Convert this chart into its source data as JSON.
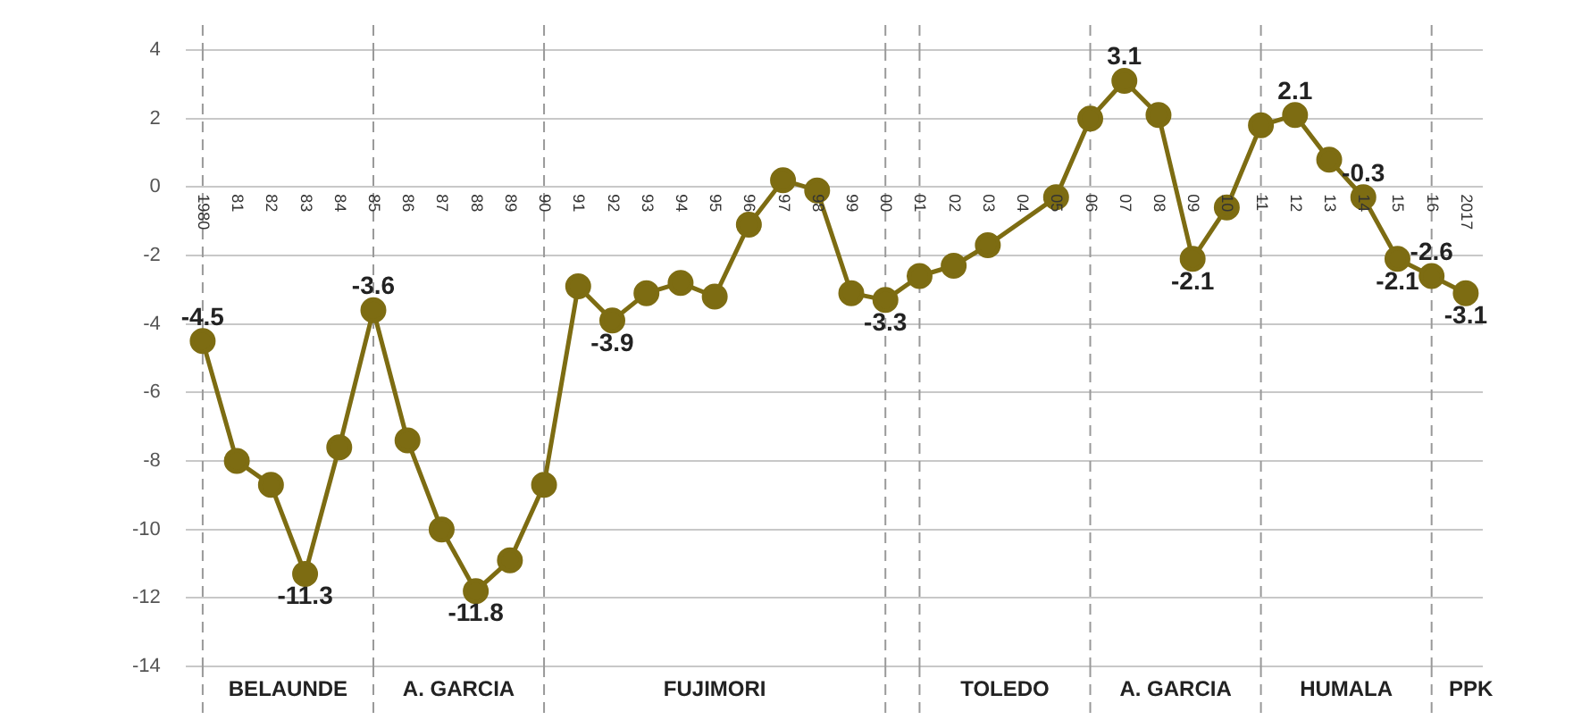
{
  "chart_data": {
    "type": "line",
    "categories": [
      "1980",
      "81",
      "82",
      "83",
      "84",
      "85",
      "86",
      "87",
      "88",
      "89",
      "90",
      "91",
      "92",
      "93",
      "94",
      "95",
      "96",
      "97",
      "98",
      "99",
      "00",
      "01",
      "02",
      "03",
      "04",
      "05",
      "06",
      "07",
      "08",
      "09",
      "10",
      "11",
      "12",
      "13",
      "14",
      "15",
      "16",
      "2017"
    ],
    "series": [
      {
        "color": "#7d6c12",
        "values": [
          -4.5,
          -8.0,
          -8.7,
          -11.3,
          -7.6,
          -3.6,
          -7.4,
          -10.0,
          -11.8,
          -10.9,
          -8.7,
          -2.9,
          -3.9,
          -3.1,
          -2.8,
          -3.2,
          -1.1,
          0.2,
          -0.1,
          -3.1,
          -3.3,
          -2.6,
          -2.3,
          -1.7,
          null,
          -0.3,
          2.0,
          3.1,
          2.1,
          -2.1,
          -0.6,
          1.8,
          2.1,
          0.8,
          -0.3,
          -2.1,
          -2.6,
          -3.1
        ],
        "value_labels": [
          "-4.5",
          null,
          null,
          "-11.3",
          null,
          "-3.6",
          null,
          null,
          "-11.8",
          null,
          null,
          null,
          "-3.9",
          null,
          null,
          null,
          null,
          null,
          null,
          null,
          "-3.3",
          null,
          null,
          null,
          null,
          null,
          null,
          "3.1",
          null,
          "-2.1",
          null,
          null,
          "2.1",
          null,
          "-0.3",
          "-2.1",
          "-2.6",
          "-3.1"
        ]
      }
    ],
    "ylim": [
      -14,
      4
    ],
    "yticks": [
      -14,
      -12,
      -10,
      -8,
      -6,
      -4,
      -2,
      0,
      2,
      4
    ],
    "grid": "y",
    "legend": false,
    "marker": "circle",
    "line_style": "solid",
    "ref_lines": [
      {
        "axis": "x",
        "value": "1980",
        "line_style": "dashed",
        "color": "#999999"
      },
      {
        "axis": "x",
        "value": "85",
        "line_style": "dashed",
        "color": "#999999"
      },
      {
        "axis": "x",
        "value": "90",
        "line_style": "dashed",
        "color": "#999999"
      },
      {
        "axis": "x",
        "value": "00",
        "line_style": "dashed",
        "color": "#999999"
      },
      {
        "axis": "x",
        "value": "01",
        "line_style": "dashed",
        "color": "#999999"
      },
      {
        "axis": "x",
        "value": "06",
        "line_style": "dashed",
        "color": "#999999"
      },
      {
        "axis": "x",
        "value": "11",
        "line_style": "dashed",
        "color": "#999999"
      },
      {
        "axis": "x",
        "value": "16",
        "line_style": "dashed",
        "color": "#999999"
      }
    ],
    "annotations": [
      "BELAUNDE",
      "A. GARCIA",
      "FUJIMORI",
      "TOLEDO",
      "A. GARCIA",
      "HUMALA",
      "PPK"
    ]
  }
}
